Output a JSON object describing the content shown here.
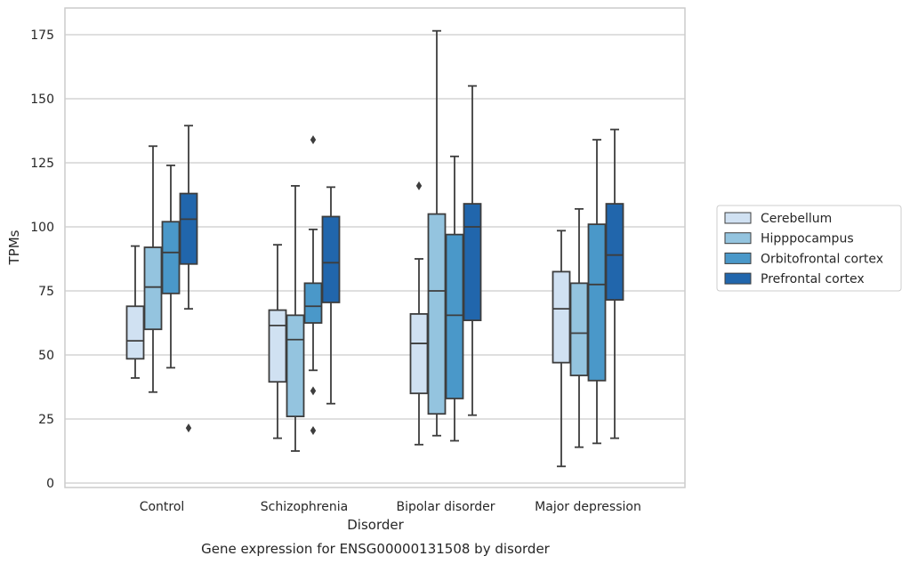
{
  "chart_data": {
    "type": "box",
    "title": "",
    "xlabel": "Disorder",
    "ylabel": "TPMs",
    "caption": "Gene expression for ENSG00000131508 by disorder",
    "ylim": [
      -2,
      185
    ],
    "yticks": [
      0,
      25,
      50,
      75,
      100,
      125,
      150,
      175
    ],
    "grid": "horizontal",
    "legend_position": "right",
    "categories": [
      "Control",
      "Schizophrenia",
      "Bipolar disorder",
      "Major depression"
    ],
    "series": [
      {
        "name": "Cerebellum",
        "color": "#d0e1f2",
        "boxes": [
          {
            "whisker_low": 41,
            "q1": 48.5,
            "median": 55.5,
            "q3": 69,
            "whisker_high": 92.5,
            "outliers": []
          },
          {
            "whisker_low": 17.5,
            "q1": 39.5,
            "median": 61.5,
            "q3": 67.5,
            "whisker_high": 93,
            "outliers": []
          },
          {
            "whisker_low": 15,
            "q1": 35,
            "median": 54.5,
            "q3": 66,
            "whisker_high": 87.5,
            "outliers": [
              116
            ]
          },
          {
            "whisker_low": 6.5,
            "q1": 47,
            "median": 68,
            "q3": 82.5,
            "whisker_high": 98.5,
            "outliers": []
          }
        ]
      },
      {
        "name": "Hipppocampus",
        "color": "#94c4df",
        "boxes": [
          {
            "whisker_low": 35.5,
            "q1": 60,
            "median": 76.5,
            "q3": 92,
            "whisker_high": 131.5,
            "outliers": []
          },
          {
            "whisker_low": 12.5,
            "q1": 26,
            "median": 56,
            "q3": 65.5,
            "whisker_high": 116,
            "outliers": []
          },
          {
            "whisker_low": 18.5,
            "q1": 27,
            "median": 75,
            "q3": 105,
            "whisker_high": 176.5,
            "outliers": []
          },
          {
            "whisker_low": 14,
            "q1": 42,
            "median": 58.5,
            "q3": 78,
            "whisker_high": 107,
            "outliers": []
          }
        ]
      },
      {
        "name": "Orbitofrontal cortex",
        "color": "#4a98c9",
        "boxes": [
          {
            "whisker_low": 45,
            "q1": 74,
            "median": 90,
            "q3": 102,
            "whisker_high": 124,
            "outliers": []
          },
          {
            "whisker_low": 44,
            "q1": 62.5,
            "median": 69,
            "q3": 78,
            "whisker_high": 99,
            "outliers": [
              134,
              36,
              20.5
            ]
          },
          {
            "whisker_low": 16.5,
            "q1": 33,
            "median": 65.5,
            "q3": 97,
            "whisker_high": 127.5,
            "outliers": []
          },
          {
            "whisker_low": 15.5,
            "q1": 40,
            "median": 77.5,
            "q3": 101,
            "whisker_high": 134,
            "outliers": []
          }
        ]
      },
      {
        "name": "Prefrontal cortex",
        "color": "#2166ac",
        "boxes": [
          {
            "whisker_low": 68,
            "q1": 85.5,
            "median": 103,
            "q3": 113,
            "whisker_high": 139.5,
            "outliers": [
              21.5
            ]
          },
          {
            "whisker_low": 31,
            "q1": 70.5,
            "median": 86,
            "q3": 104,
            "whisker_high": 115.5,
            "outliers": []
          },
          {
            "whisker_low": 26.5,
            "q1": 63.5,
            "median": 100,
            "q3": 109,
            "whisker_high": 155,
            "outliers": []
          },
          {
            "whisker_low": 17.5,
            "q1": 71.5,
            "median": 89,
            "q3": 109,
            "whisker_high": 138,
            "outliers": []
          }
        ]
      }
    ]
  }
}
